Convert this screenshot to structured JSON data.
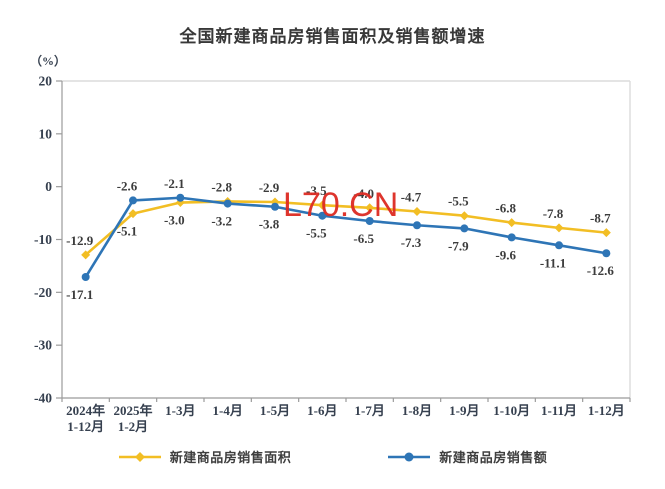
{
  "chart_data": {
    "type": "line",
    "title": "全国新建商品房销售面积及销售额增速",
    "unit_label": "（%）",
    "categories": [
      "2024年\n1-12月",
      "2025年\n1-2月",
      "1-3月",
      "1-4月",
      "1-5月",
      "1-6月",
      "1-7月",
      "1-8月",
      "1-9月",
      "1-10月",
      "1-11月",
      "1-12月"
    ],
    "series": [
      {
        "name": "新建商品房销售面积",
        "color": "#F2BE24",
        "marker": "diamond",
        "values": [
          -12.9,
          -5.1,
          -3.0,
          -2.8,
          -2.9,
          -3.5,
          -4.0,
          -4.7,
          -5.5,
          -6.8,
          -7.8,
          -8.7
        ]
      },
      {
        "name": "新建商品房销售额",
        "color": "#2E75B6",
        "marker": "circle",
        "values": [
          -17.1,
          -2.6,
          -2.1,
          -3.2,
          -3.8,
          -5.5,
          -6.5,
          -7.3,
          -7.9,
          -9.6,
          -11.1,
          -12.6
        ]
      }
    ],
    "y_axis": {
      "min": -40,
      "max": 20,
      "step": 10,
      "ticks": [
        20,
        10,
        0,
        -10,
        -20,
        -30,
        -40
      ]
    },
    "grid": false,
    "legend_position": "bottom",
    "data_labels": true
  },
  "watermark": {
    "text": "L70.CN",
    "color": "#DD2B22"
  },
  "style_colors": {
    "axis": "#9b9b9b",
    "plot_border": "#dcdcdc",
    "tick_label": "#36404f",
    "data_label": "#3c3c3c"
  }
}
